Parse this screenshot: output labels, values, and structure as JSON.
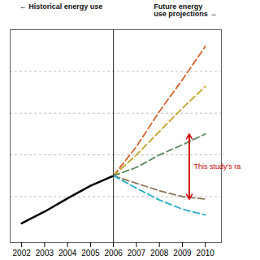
{
  "chart_data": {
    "type": "line",
    "x": [
      2002,
      2003,
      2004,
      2005,
      2006,
      2007,
      2008,
      2009,
      2010
    ],
    "series": [
      {
        "color": "#000000",
        "line_style": "solid",
        "values": [
          0.18,
          0.32,
          0.48,
          0.63,
          0.75,
          null,
          null,
          null,
          null
        ]
      },
      {
        "color": "#d4622a",
        "line_style": "dashed",
        "values": [
          null,
          null,
          null,
          null,
          0.75,
          1.1,
          1.52,
          1.9,
          2.3
        ]
      },
      {
        "color": "#c8a227",
        "line_style": "dashed",
        "values": [
          null,
          null,
          null,
          null,
          0.75,
          1.0,
          1.28,
          1.56,
          1.82
        ]
      },
      {
        "color": "#5a8a60",
        "line_style": "dashed",
        "values": [
          null,
          null,
          null,
          null,
          0.75,
          0.85,
          1.0,
          1.12,
          1.25
        ]
      },
      {
        "color": "#8b7355",
        "line_style": "dashed",
        "values": [
          null,
          null,
          null,
          null,
          0.75,
          0.66,
          0.57,
          0.5,
          0.47
        ]
      },
      {
        "color": "#2aadcc",
        "line_style": "dashed",
        "values": [
          null,
          null,
          null,
          null,
          0.75,
          0.6,
          0.46,
          0.35,
          0.28
        ]
      }
    ],
    "xlim": [
      2001.5,
      2010.7
    ],
    "xticks": [
      2002,
      2003,
      2004,
      2005,
      2006,
      2007,
      2008,
      2009,
      2010
    ],
    "ylim": [
      -0.05,
      2.5
    ],
    "yticks": [
      0.5,
      1.0,
      1.5,
      2.0
    ],
    "grid": "y",
    "tick_labels": "x",
    "divider_x": 2006,
    "annotations": [
      {
        "text": "← Historical energy use"
      },
      {
        "text": "Future energy\nuse projections →"
      },
      {
        "text": "This study's ra",
        "x": 2009.5,
        "y": 0.86,
        "color": "#cc0000"
      }
    ],
    "arrow": {
      "x": 2009.3,
      "y": [
        1.25,
        0.47
      ],
      "color": "#cc0000"
    }
  }
}
